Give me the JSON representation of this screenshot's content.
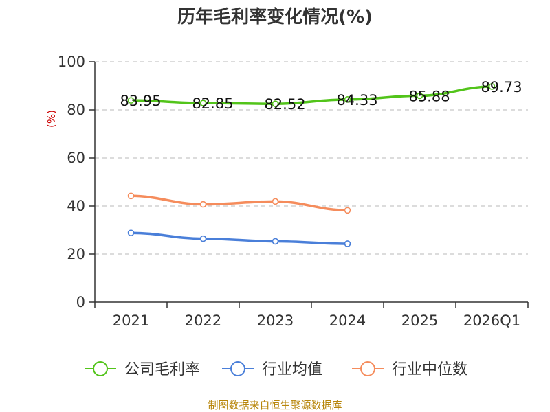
{
  "chart_data": {
    "type": "line",
    "title": "历年毛利率变化情况(%)",
    "unit_label": "(%)",
    "categories": [
      "2021",
      "2022",
      "2023",
      "2024",
      "2025",
      "2026Q1"
    ],
    "ylim": [
      0,
      100
    ],
    "yticks": [
      0,
      20,
      40,
      60,
      80,
      100
    ],
    "grid": true,
    "legend_position": "bottom",
    "series": [
      {
        "name": "公司毛利率",
        "color": "#52c41a",
        "values": [
          83.95,
          82.85,
          82.52,
          84.33,
          85.88,
          89.73
        ],
        "labels": [
          "83.95",
          "82.85",
          "82.52",
          "84.33",
          "85.88",
          "89.73"
        ]
      },
      {
        "name": "行业均值",
        "color": "#4a7fd9",
        "values": [
          28.8,
          26.4,
          25.3,
          24.3,
          null,
          null
        ]
      },
      {
        "name": "行业中位数",
        "color": "#f58c5c",
        "values": [
          44.2,
          40.7,
          41.9,
          38.2,
          null,
          null
        ]
      }
    ]
  },
  "footer": {
    "source": "制图数据来自恒生聚源数据库"
  }
}
